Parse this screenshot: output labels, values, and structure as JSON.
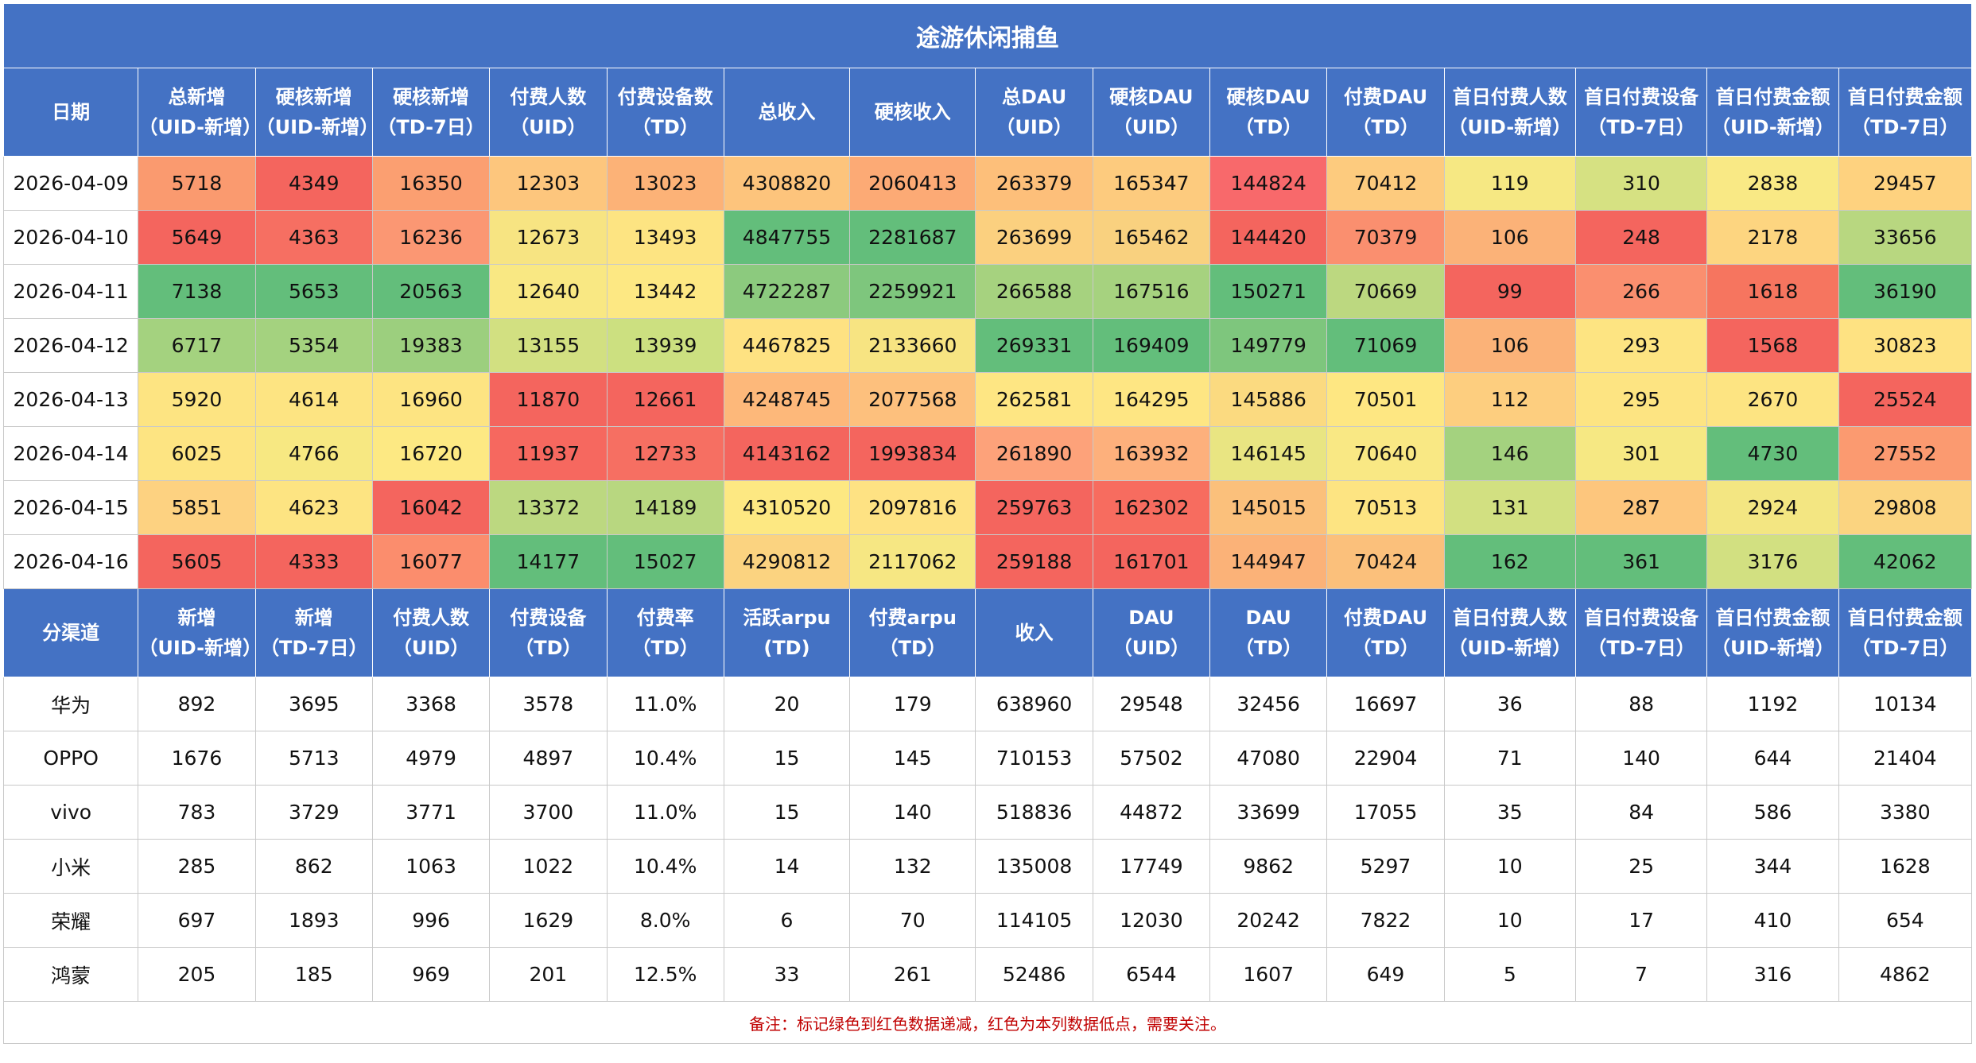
{
  "title": "途游休闲捕鱼",
  "daily": {
    "headers": [
      [
        "日期"
      ],
      [
        "总新增",
        "（UID-新增）"
      ],
      [
        "硬核新增",
        "（UID-新增）"
      ],
      [
        "硬核新增",
        "（TD-7日）"
      ],
      [
        "付费人数",
        "（UID）"
      ],
      [
        "付费设备数",
        "（TD）"
      ],
      [
        "总收入"
      ],
      [
        "硬核收入"
      ],
      [
        "总DAU",
        "（UID）"
      ],
      [
        "硬核DAU",
        "（UID）"
      ],
      [
        "硬核DAU",
        "（TD）"
      ],
      [
        "付费DAU",
        "（TD）"
      ],
      [
        "首日付费人数",
        "（UID-新增）"
      ],
      [
        "首日付费设备",
        "（TD-7日）"
      ],
      [
        "首日付费金额",
        "（UID-新增）"
      ],
      [
        "首日付费金额",
        "（TD-7日）"
      ]
    ],
    "rows": [
      [
        "2026-04-09",
        "5718",
        "4349",
        "16350",
        "12303",
        "13023",
        "4308820",
        "2060413",
        "263379",
        "165347",
        "144824",
        "70412",
        "119",
        "310",
        "2838",
        "29457"
      ],
      [
        "2026-04-10",
        "5649",
        "4363",
        "16236",
        "12673",
        "13493",
        "4847755",
        "2281687",
        "263699",
        "165462",
        "144420",
        "70379",
        "106",
        "248",
        "2178",
        "33656"
      ],
      [
        "2026-04-11",
        "7138",
        "5653",
        "20563",
        "12640",
        "13442",
        "4722287",
        "2259921",
        "266588",
        "167516",
        "150271",
        "70669",
        "99",
        "266",
        "1618",
        "36190"
      ],
      [
        "2026-04-12",
        "6717",
        "5354",
        "19383",
        "13155",
        "13939",
        "4467825",
        "2133660",
        "269331",
        "169409",
        "149779",
        "71069",
        "106",
        "293",
        "1568",
        "30823"
      ],
      [
        "2026-04-13",
        "5920",
        "4614",
        "16960",
        "11870",
        "12661",
        "4248745",
        "2077568",
        "262581",
        "164295",
        "145886",
        "70501",
        "112",
        "295",
        "2670",
        "25524"
      ],
      [
        "2026-04-14",
        "6025",
        "4766",
        "16720",
        "11937",
        "12733",
        "4143162",
        "1993834",
        "261890",
        "163932",
        "146145",
        "70640",
        "146",
        "301",
        "4730",
        "27552"
      ],
      [
        "2026-04-15",
        "5851",
        "4623",
        "16042",
        "13372",
        "14189",
        "4310520",
        "2097816",
        "259763",
        "162302",
        "145015",
        "70513",
        "131",
        "287",
        "2924",
        "29808"
      ],
      [
        "2026-04-16",
        "5605",
        "4333",
        "16077",
        "14177",
        "15027",
        "4290812",
        "2117062",
        "259188",
        "161701",
        "144947",
        "70424",
        "162",
        "361",
        "3176",
        "42062"
      ]
    ],
    "colors": [
      [
        "#ffffff",
        "#fa9a6f",
        "#f4655e",
        "#fb9f71",
        "#fdc67d",
        "#fcb277",
        "#fdc47c",
        "#fcaa75",
        "#fdbf7a",
        "#fdcb7e",
        "#f8696b",
        "#fdcb7e",
        "#f6e883",
        "#d6e182",
        "#f9e985",
        "#fed27f"
      ],
      [
        "#ffffff",
        "#f4655e",
        "#f66f62",
        "#fb9773",
        "#f7e482",
        "#fde482",
        "#63be7b",
        "#63be7b",
        "#fbd07f",
        "#f9d17f",
        "#f4655e",
        "#fa8f6f",
        "#fbb278",
        "#f4655e",
        "#fdd580",
        "#b8d780"
      ],
      [
        "#ffffff",
        "#63be7b",
        "#63be7b",
        "#63be7b",
        "#f9e883",
        "#fde883",
        "#8cca7e",
        "#7ec67d",
        "#a6d27f",
        "#a6d27f",
        "#63be7b",
        "#bcd880",
        "#f4655e",
        "#fa8f6f",
        "#f6755f",
        "#63be7b"
      ],
      [
        "#ffffff",
        "#a4d27f",
        "#a4d27f",
        "#9ccf7e",
        "#d2e081",
        "#cce080",
        "#fee282",
        "#f7e482",
        "#63be7b",
        "#63be7b",
        "#7ec67d",
        "#63be7b",
        "#fbb278",
        "#fde482",
        "#f4655e",
        "#fee282"
      ],
      [
        "#ffffff",
        "#fde482",
        "#fde482",
        "#fde482",
        "#f4655e",
        "#f4655e",
        "#fdb87a",
        "#fdc07d",
        "#fee683",
        "#fee683",
        "#fbda80",
        "#fee782",
        "#fdce7f",
        "#fde482",
        "#fde482",
        "#f4655e"
      ],
      [
        "#ffffff",
        "#fde482",
        "#f7e882",
        "#fde983",
        "#f6685f",
        "#f66f62",
        "#f4655e",
        "#f4655e",
        "#fda27a",
        "#fdb07c",
        "#e9e582",
        "#f9e884",
        "#a4d27f",
        "#f6e883",
        "#63be7b",
        "#fb9a70"
      ],
      [
        "#ffffff",
        "#fdd281",
        "#fde482",
        "#f4655e",
        "#bcd880",
        "#b8d780",
        "#fde882",
        "#fee283",
        "#f4655e",
        "#f76c5f",
        "#fbc07b",
        "#fde482",
        "#d2e081",
        "#fdc67d",
        "#f3e682",
        "#fbd480"
      ],
      [
        "#ffffff",
        "#f4655e",
        "#f4655e",
        "#fb8d6d",
        "#63be7b",
        "#63be7b",
        "#fbd380",
        "#f6e783",
        "#f4655e",
        "#f4655e",
        "#fbb278",
        "#fbc07b",
        "#63be7b",
        "#63be7b",
        "#d2e081",
        "#63be7b"
      ]
    ]
  },
  "channels": {
    "headers": [
      [
        "分渠道"
      ],
      [
        "新增",
        "（UID-新增）"
      ],
      [
        "新增",
        "（TD-7日）"
      ],
      [
        "付费人数",
        "（UID）"
      ],
      [
        "付费设备",
        "（TD）"
      ],
      [
        "付费率",
        "（TD）"
      ],
      [
        "活跃arpu",
        "(TD)"
      ],
      [
        "付费arpu",
        "（TD）"
      ],
      [
        "收入"
      ],
      [
        "DAU",
        "（UID）"
      ],
      [
        "DAU",
        "（TD）"
      ],
      [
        "付费DAU",
        "（TD）"
      ],
      [
        "首日付费人数",
        "（UID-新增）"
      ],
      [
        "首日付费设备",
        "（TD-7日）"
      ],
      [
        "首日付费金额",
        "（UID-新增）"
      ],
      [
        "首日付费金额",
        "（TD-7日）"
      ]
    ],
    "rows": [
      [
        "华为",
        "892",
        "3695",
        "3368",
        "3578",
        "11.0%",
        "20",
        "179",
        "638960",
        "29548",
        "32456",
        "16697",
        "36",
        "88",
        "1192",
        "10134"
      ],
      [
        "OPPO",
        "1676",
        "5713",
        "4979",
        "4897",
        "10.4%",
        "15",
        "145",
        "710153",
        "57502",
        "47080",
        "22904",
        "71",
        "140",
        "644",
        "21404"
      ],
      [
        "vivo",
        "783",
        "3729",
        "3771",
        "3700",
        "11.0%",
        "15",
        "140",
        "518836",
        "44872",
        "33699",
        "17055",
        "35",
        "84",
        "586",
        "3380"
      ],
      [
        "小米",
        "285",
        "862",
        "1063",
        "1022",
        "10.4%",
        "14",
        "132",
        "135008",
        "17749",
        "9862",
        "5297",
        "10",
        "25",
        "344",
        "1628"
      ],
      [
        "荣耀",
        "697",
        "1893",
        "996",
        "1629",
        "8.0%",
        "6",
        "70",
        "114105",
        "12030",
        "20242",
        "7822",
        "10",
        "17",
        "410",
        "654"
      ],
      [
        "鸿蒙",
        "205",
        "185",
        "969",
        "201",
        "12.5%",
        "33",
        "261",
        "52486",
        "6544",
        "1607",
        "649",
        "5",
        "7",
        "316",
        "4862"
      ]
    ]
  },
  "note": "备注：标记绿色到红色数据递减，红色为本列数据低点，需要关注。",
  "theme": {
    "header_bg": "#4472c4",
    "header_text": "#ffffff",
    "note_color": "#c00000"
  }
}
